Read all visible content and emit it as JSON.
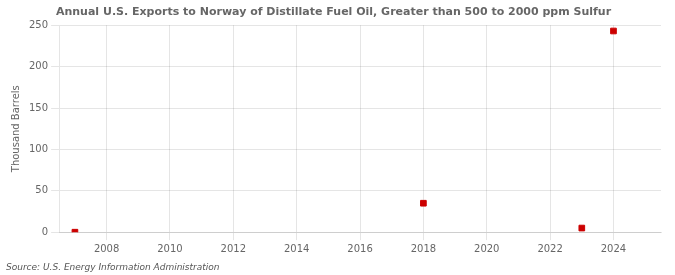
{
  "chart_data": {
    "type": "scatter",
    "title": "Annual U.S. Exports to Norway of Distillate Fuel Oil, Greater than 500 to 2000 ppm Sulfur",
    "y_label": "Thousand Barrels",
    "annotations": [
      "Source: U.S. Energy Information Administration"
    ],
    "x": [
      2007,
      2018,
      2023,
      2024
    ],
    "values": [
      0,
      35,
      5,
      243
    ],
    "color": "#cc0000",
    "marker": "square",
    "xlim": [
      2006.5,
      2025.5
    ],
    "xticks": [
      2008,
      2010,
      2012,
      2014,
      2016,
      2018,
      2020,
      2022,
      2024
    ],
    "ylim": [
      0,
      250
    ],
    "yticks": [
      0,
      50,
      100,
      150,
      200,
      250
    ],
    "grid": true
  }
}
